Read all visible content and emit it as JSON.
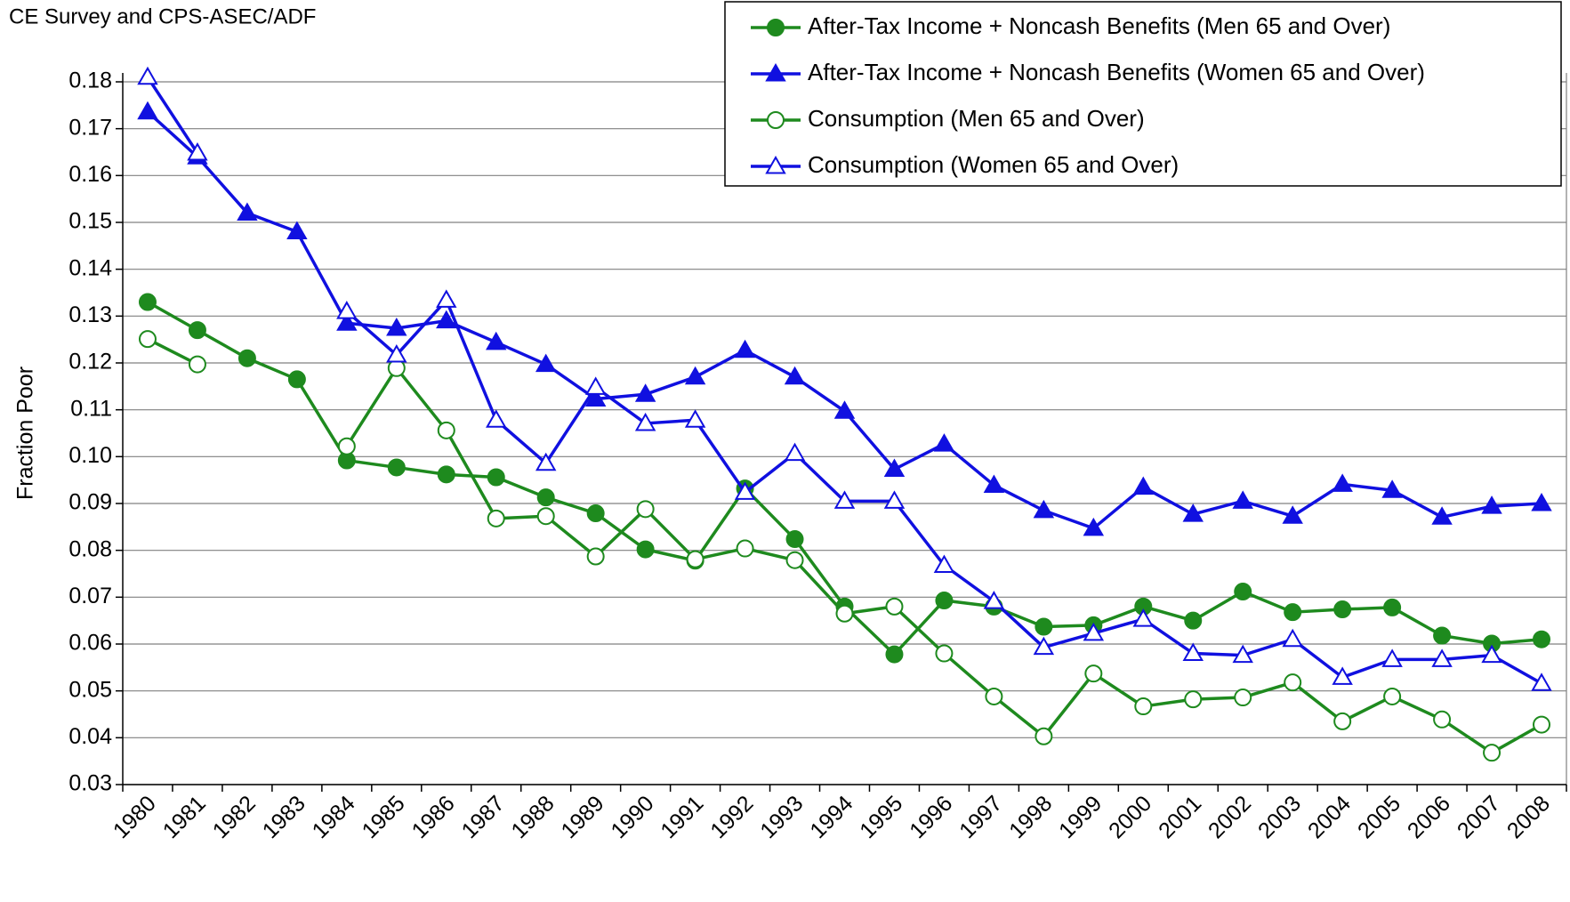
{
  "chart_data": {
    "type": "line",
    "title": "CE Survey and CPS-ASEC/ADF",
    "y_label": "Fraction Poor",
    "categories": [
      "1980",
      "1981",
      "1982",
      "1983",
      "1984",
      "1985",
      "1986",
      "1987",
      "1988",
      "1989",
      "1990",
      "1991",
      "1992",
      "1993",
      "1994",
      "1995",
      "1996",
      "1997",
      "1998",
      "1999",
      "2000",
      "2001",
      "2002",
      "2003",
      "2004",
      "2005",
      "2006",
      "2007",
      "2008"
    ],
    "ylim": [
      0.03,
      0.18
    ],
    "yticks": [
      0.03,
      0.04,
      0.05,
      0.06,
      0.07,
      0.08,
      0.09,
      {
        "value": 0.1,
        "label": "0.10"
      },
      0.11,
      0.12,
      0.13,
      0.14,
      0.15,
      0.16,
      0.17,
      0.18
    ],
    "grid": true,
    "legend": "top-right",
    "series": [
      {
        "name": "After-Tax Income + Noncash Benefits (Men 65 and Over)",
        "color": "#1e8a1e",
        "marker": "circle",
        "filled": true,
        "values": [
          0.133,
          0.127,
          0.121,
          0.1165,
          0.0992,
          0.0977,
          0.0962,
          0.0956,
          0.0913,
          0.0879,
          0.0802,
          0.0778,
          0.0932,
          0.0824,
          0.068,
          0.0578,
          0.0693,
          0.068,
          0.0637,
          0.064,
          0.068,
          0.065,
          0.0712,
          0.0668,
          0.0674,
          0.0678,
          0.0618,
          0.0601,
          0.061
        ]
      },
      {
        "name": "After-Tax Income + Noncash Benefits (Women 65 and Over)",
        "color": "#1010e0",
        "marker": "triangle",
        "filled": true,
        "values": [
          0.1736,
          0.164,
          0.152,
          0.148,
          0.1285,
          0.1274,
          0.129,
          0.1244,
          0.1197,
          0.1123,
          0.1133,
          0.117,
          0.1227,
          0.117,
          0.1097,
          0.0973,
          0.1027,
          0.0939,
          0.0885,
          0.0847,
          0.0935,
          0.0877,
          0.0905,
          0.0873,
          0.0941,
          0.0928,
          0.0871,
          0.0894,
          0.09
        ]
      },
      {
        "name": "Consumption (Men 65 and Over)",
        "color": "#1e8a1e",
        "marker": "circle",
        "filled": false,
        "values": [
          0.1251,
          0.1197,
          null,
          null,
          0.1022,
          0.1189,
          0.1056,
          0.0868,
          0.0873,
          0.0787,
          0.0888,
          0.0781,
          0.0804,
          0.0779,
          0.0665,
          0.068,
          0.058,
          0.0488,
          0.0403,
          0.0537,
          0.0467,
          0.0482,
          0.0486,
          0.0518,
          0.0435,
          0.0488,
          0.0439,
          0.0368,
          0.0428
        ]
      },
      {
        "name": "Consumption (Women 65 and Over)",
        "color": "#1010e0",
        "marker": "triangle",
        "filled": false,
        "values": [
          0.181,
          0.1648,
          null,
          null,
          0.131,
          0.1217,
          0.1334,
          0.1078,
          0.0986,
          0.1148,
          0.1071,
          0.1078,
          0.0924,
          0.1007,
          0.0905,
          0.0905,
          0.0768,
          0.0691,
          0.0593,
          0.0623,
          0.0653,
          0.058,
          0.0576,
          0.061,
          0.0529,
          0.0567,
          0.0567,
          0.0576,
          0.0516
        ]
      }
    ]
  }
}
